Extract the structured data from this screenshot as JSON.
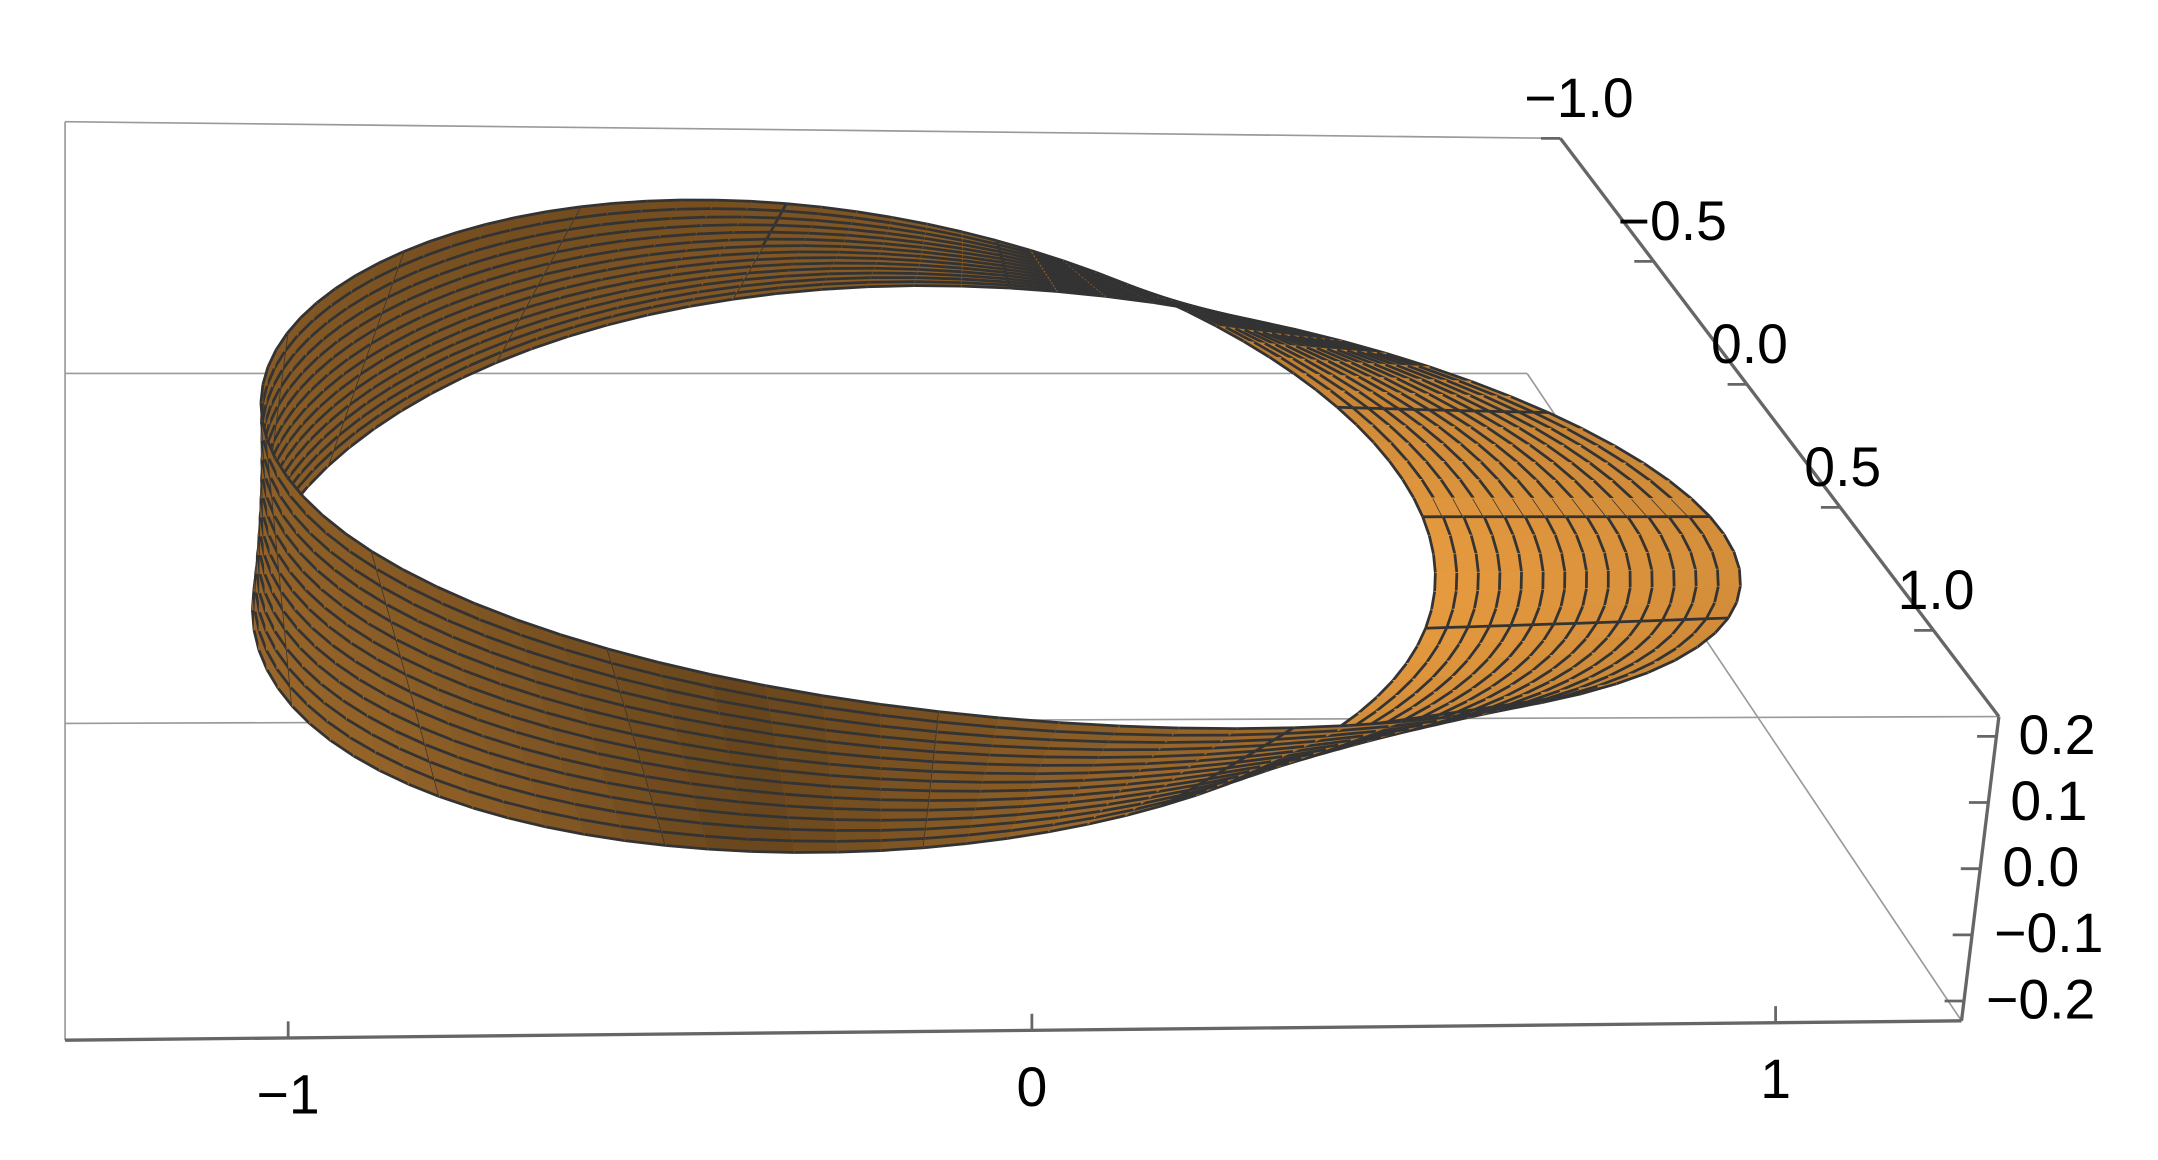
{
  "chart_data": {
    "type": "surface3d",
    "xlim": [
      -1.3,
      1.25
    ],
    "ylim": [
      -1.0,
      1.35
    ],
    "zlim": [
      -0.23,
      0.23
    ],
    "xticks": [
      {
        "value": -1,
        "label": "−1"
      },
      0,
      1
    ],
    "yticks": [
      {
        "value": -1,
        "label": "−1.0"
      },
      {
        "value": -0.5,
        "label": "−0.5"
      },
      {
        "value": 0,
        "label": "0.0"
      },
      0.5,
      {
        "value": 1,
        "label": "1.0"
      }
    ],
    "zticks": [
      0.2,
      0.1,
      {
        "value": 0,
        "label": "0.0"
      },
      {
        "value": -0.1,
        "label": "−0.1"
      },
      {
        "value": -0.2,
        "label": "−0.2"
      }
    ],
    "color": "#f5a443",
    "mesh": true
  }
}
